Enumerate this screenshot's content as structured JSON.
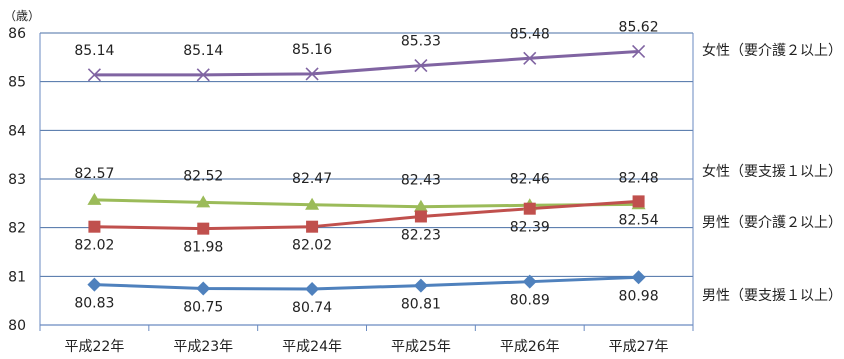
{
  "chart_data": {
    "type": "line",
    "title": "",
    "xlabel": "",
    "ylabel": "",
    "unit_label": "（歳）",
    "categories": [
      "平成22年",
      "平成23年",
      "平成24年",
      "平成25年",
      "平成26年",
      "平成27年"
    ],
    "ylim": [
      80,
      86
    ],
    "yticks": [
      "80",
      "81",
      "82",
      "83",
      "84",
      "85",
      "86"
    ],
    "grid": "horizontal",
    "series": [
      {
        "name": "女性（要介護２以上）",
        "color": "#8064a2",
        "marker": "x",
        "values": [
          85.14,
          85.14,
          85.16,
          85.33,
          85.48,
          85.62
        ],
        "value_labels": [
          "85.14",
          "85.14",
          "85.16",
          "85.33",
          "85.48",
          "85.62"
        ]
      },
      {
        "name": "女性（要支援１以上）",
        "color": "#9bbb59",
        "marker": "triangle",
        "values": [
          82.57,
          82.52,
          82.47,
          82.43,
          82.46,
          82.48
        ],
        "value_labels": [
          "82.57",
          "82.52",
          "82.47",
          "82.43",
          "82.46",
          "82.48"
        ]
      },
      {
        "name": "男性（要介護２以上）",
        "color": "#c0504d",
        "marker": "square",
        "values": [
          82.02,
          81.98,
          82.02,
          82.23,
          82.39,
          82.54
        ],
        "value_labels": [
          "82.02",
          "81.98",
          "82.02",
          "82.23",
          "82.39",
          "82.54"
        ]
      },
      {
        "name": "男性（要支援１以上）",
        "color": "#4f81bd",
        "marker": "diamond",
        "values": [
          80.83,
          80.75,
          80.74,
          80.81,
          80.89,
          80.98
        ],
        "value_labels": [
          "80.83",
          "80.75",
          "80.74",
          "80.81",
          "80.89",
          "80.98"
        ]
      }
    ]
  }
}
